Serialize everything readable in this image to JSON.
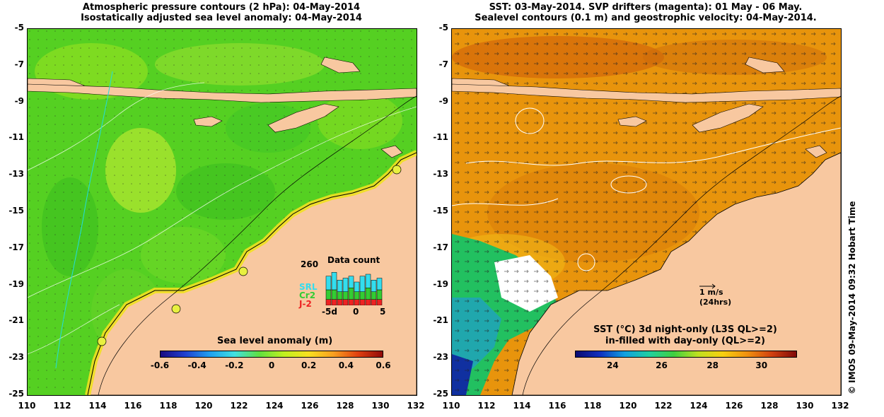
{
  "left_panel": {
    "title_line1": "Atmospheric pressure contours (2 hPa): 04-May-2014",
    "title_line2": "Isostatically adjusted sea level anomaly: 04-May-2014",
    "colorbar_label": "Sea level anomaly (m)",
    "colorbar_ticks": [
      "-0.6",
      "-0.4",
      "-0.2",
      "0",
      "0.2",
      "0.4",
      "0.6"
    ],
    "data_count": {
      "title": "Data count",
      "max_label": "260",
      "legend": [
        {
          "label": "SRL",
          "color": "#33ddee"
        },
        {
          "label": "Cr2",
          "color": "#33cc33"
        },
        {
          "label": "J-2",
          "color": "#ee2222"
        }
      ],
      "x_ticks": [
        "-5d",
        "0",
        "5"
      ],
      "bars": [
        {
          "srl": 0.35,
          "cr2": 0.25,
          "j2": 0.15
        },
        {
          "srl": 0.45,
          "cr2": 0.25,
          "j2": 0.15
        },
        {
          "srl": 0.3,
          "cr2": 0.2,
          "j2": 0.15
        },
        {
          "srl": 0.35,
          "cr2": 0.2,
          "j2": 0.15
        },
        {
          "srl": 0.3,
          "cr2": 0.3,
          "j2": 0.15
        },
        {
          "srl": 0.25,
          "cr2": 0.2,
          "j2": 0.15
        },
        {
          "srl": 0.4,
          "cr2": 0.2,
          "j2": 0.15
        },
        {
          "srl": 0.35,
          "cr2": 0.3,
          "j2": 0.15
        },
        {
          "srl": 0.3,
          "cr2": 0.2,
          "j2": 0.15
        },
        {
          "srl": 0.3,
          "cr2": 0.25,
          "j2": 0.15
        }
      ]
    }
  },
  "right_panel": {
    "title_line1": "SST: 03-May-2014. SVP drifters (magenta): 01 May - 06 May.",
    "title_line2": "Sealevel contours (0.1 m) and geostrophic velocity: 04-May-2014.",
    "colorbar_label_line1": "SST (°C)  3d night-only (L3S QL>=2)",
    "colorbar_label_line2": "in-filled with day-only (QL>=2)",
    "colorbar_ticks": [
      "24",
      "26",
      "28",
      "30"
    ],
    "velocity_scale_line1": "1 m/s",
    "velocity_scale_line2": "(24hrs)"
  },
  "axes": {
    "lat_labels": [
      "-5",
      "-7",
      "-9",
      "-11",
      "-13",
      "-15",
      "-17",
      "-19",
      "-21",
      "-23",
      "-25"
    ],
    "lon_labels": [
      "110",
      "112",
      "114",
      "116",
      "118",
      "120",
      "122",
      "124",
      "126",
      "128",
      "130",
      "132"
    ]
  },
  "colors": {
    "land": "#f8c8a0",
    "ocean_green": "#55d022",
    "ocean_sst": "#e8940c",
    "contour_white": "#ffffff"
  },
  "credit": "© IMOS 09-May-2014 09:32 Hobart Time"
}
